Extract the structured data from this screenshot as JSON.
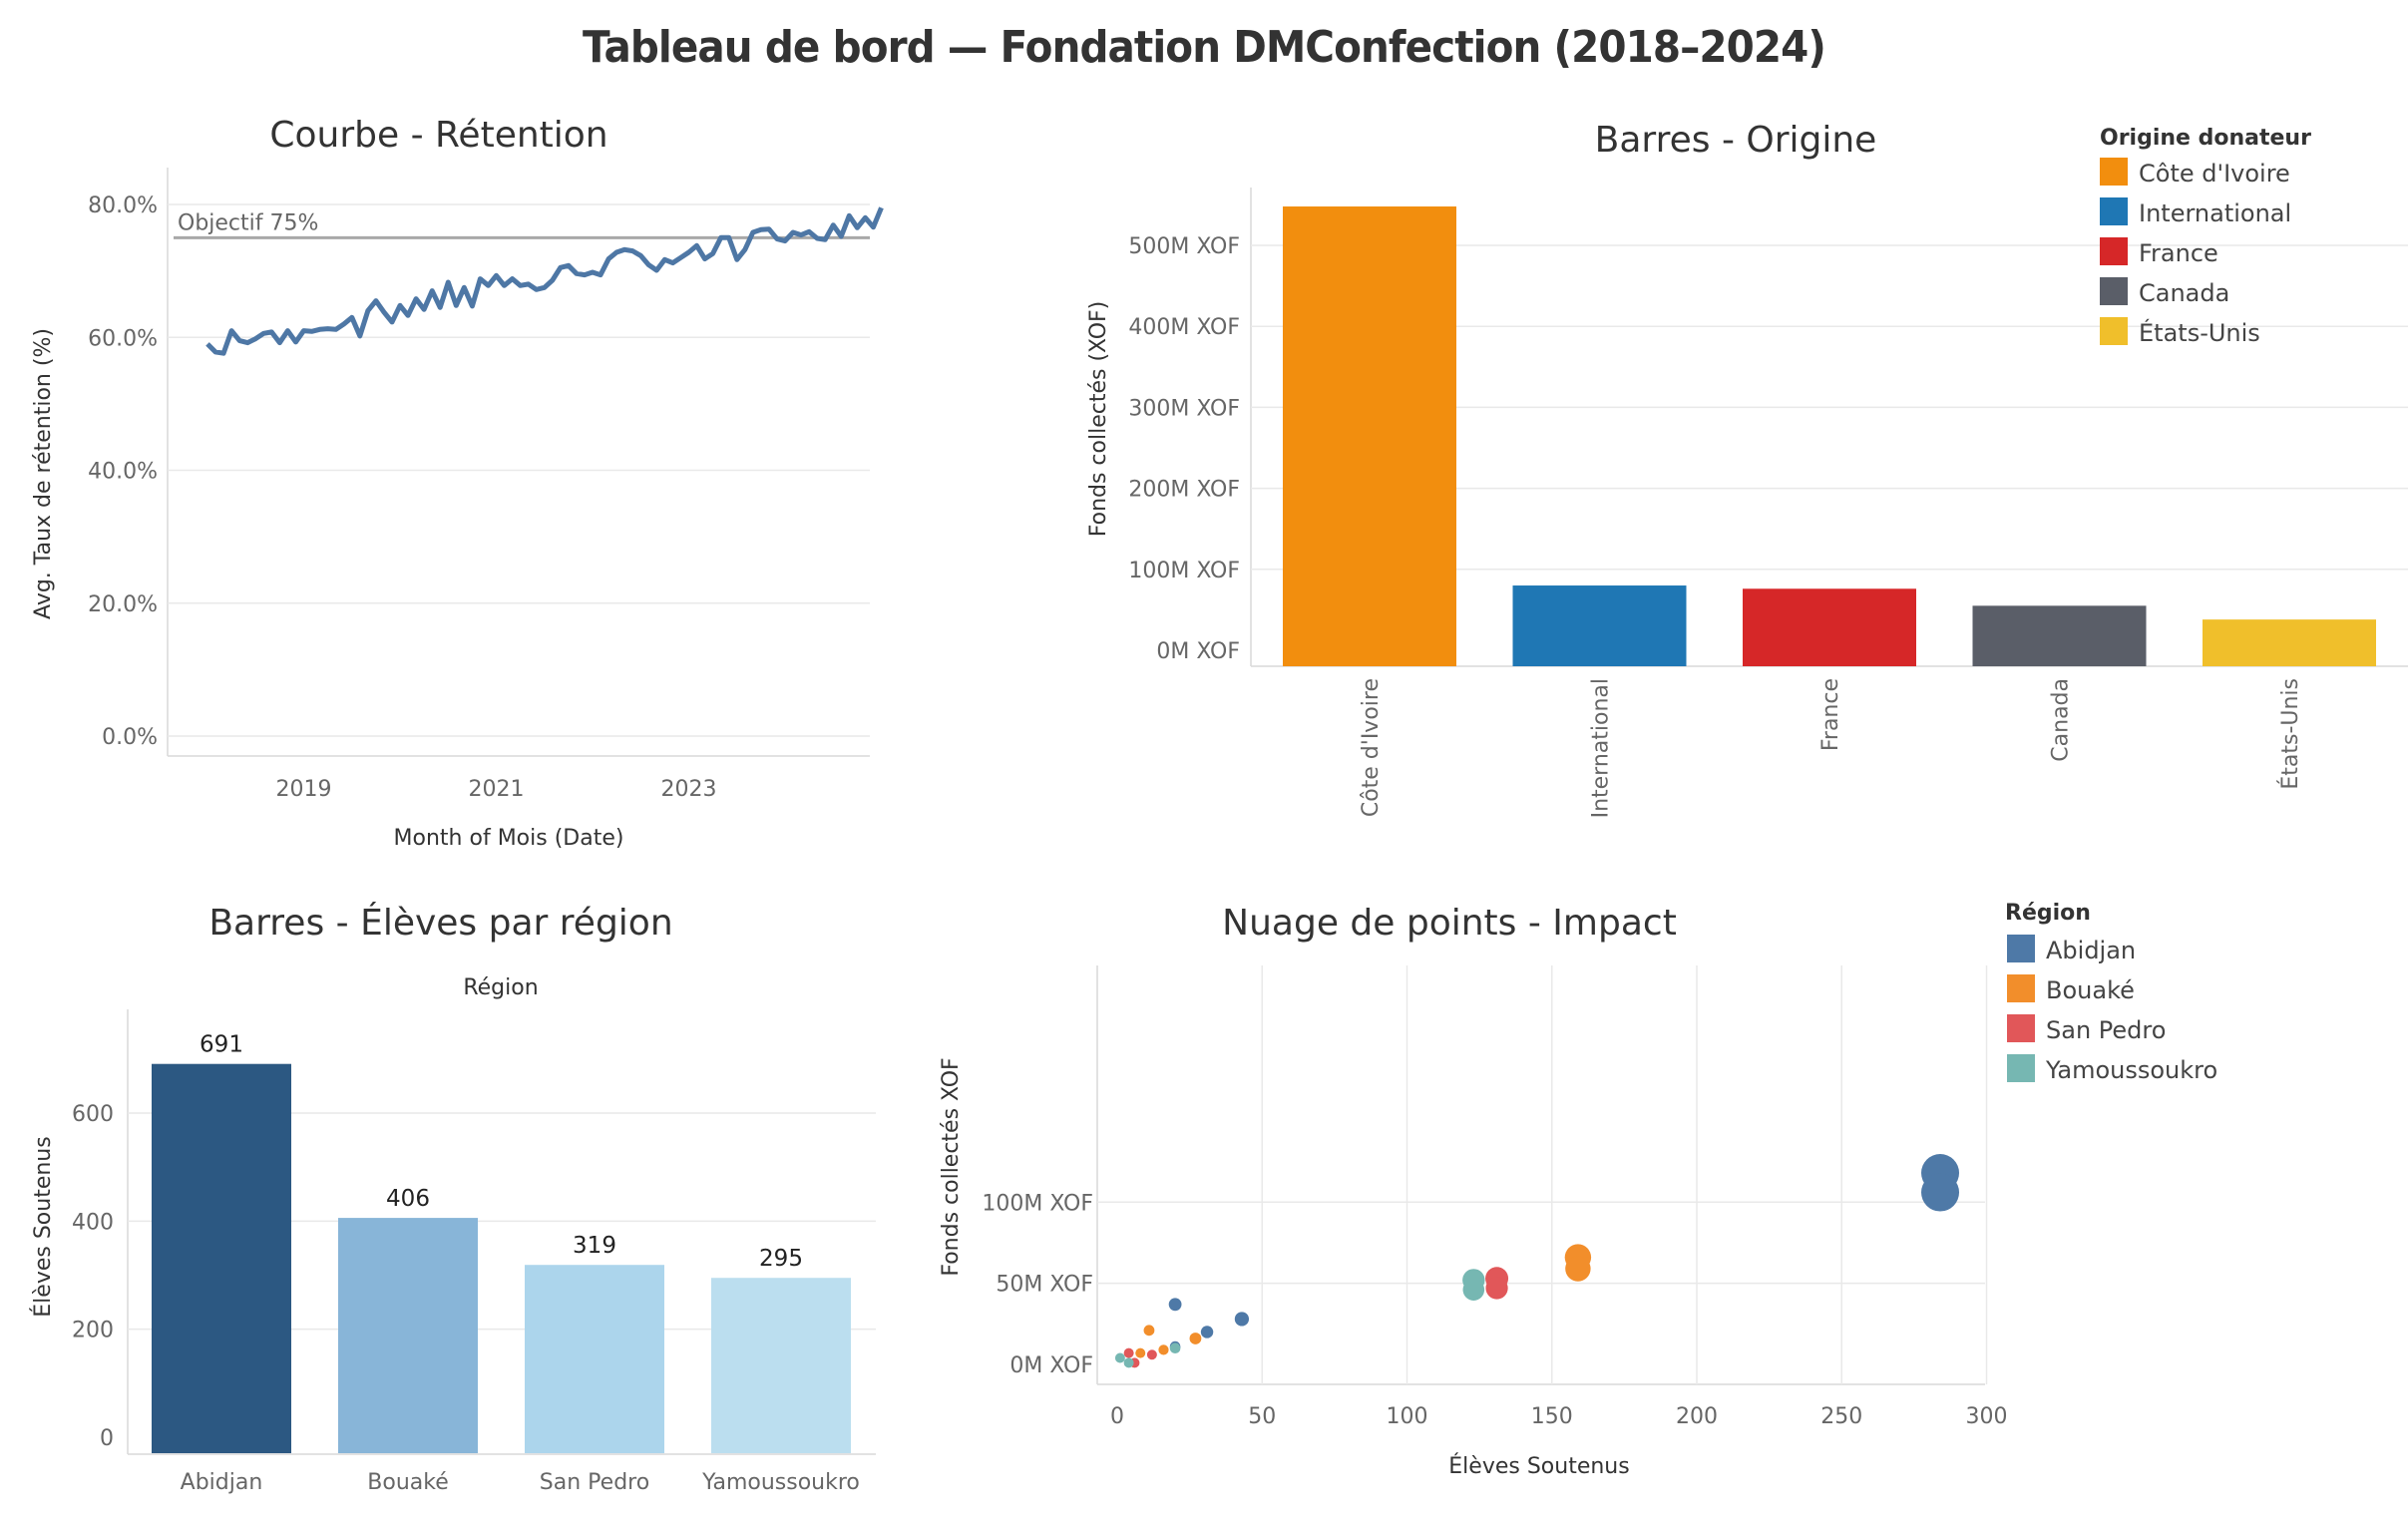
{
  "title": "Tableau de bord — Fondation DMConfection (2018–2024)",
  "chart_data": [
    {
      "type": "line",
      "title": "Courbe - Rétention",
      "xlabel": "Month of Mois (Date)",
      "ylabel": "Avg. Taux de rétention (%)",
      "x_ticks": [
        "2019",
        "2021",
        "2023"
      ],
      "y_ticks": [
        "0.0%",
        "20.0%",
        "40.0%",
        "60.0%",
        "80.0%"
      ],
      "ylim": [
        0,
        80
      ],
      "reference_line": {
        "label": "Objectif 75%",
        "value": 75
      },
      "series": [
        {
          "x_start": "2018-01",
          "values": [
            59.0,
            57.8,
            57.6,
            61.0,
            59.5,
            59.2,
            59.8,
            60.6,
            60.8,
            59.2,
            61.0,
            59.3,
            61.0,
            60.9,
            61.2,
            61.3,
            61.2,
            62.0,
            63.0,
            60.2,
            64.0,
            65.5,
            63.8,
            62.3,
            64.8,
            63.3,
            65.8,
            64.2,
            67.0,
            64.5,
            68.3,
            64.8,
            67.5,
            64.7,
            68.8,
            67.8,
            69.3,
            67.8,
            68.8,
            67.8,
            68.0,
            67.2,
            67.5,
            68.6,
            70.5,
            70.8,
            69.6,
            69.4,
            69.8,
            69.4,
            71.8,
            72.8,
            73.2,
            73.0,
            72.3,
            70.9,
            70.1,
            71.7,
            71.2,
            72.0,
            72.8,
            73.8,
            71.8,
            72.6,
            75.0,
            75.0,
            71.7,
            73.2,
            75.8,
            76.2,
            76.3,
            74.8,
            74.5,
            75.8,
            75.4,
            75.9,
            74.9,
            74.7,
            76.9,
            75.2,
            78.3,
            76.5,
            78.0,
            76.6,
            79.5
          ]
        }
      ]
    },
    {
      "type": "bar",
      "title": "Barres - Origine",
      "ylabel": "Fonds collectés (XOF)",
      "categories": [
        "Côte d'Ivoire",
        "International",
        "France",
        "Canada",
        "États-Unis"
      ],
      "values": [
        548,
        80,
        76,
        55,
        38
      ],
      "unit": "M XOF",
      "y_ticks": [
        "0M XOF",
        "100M XOF",
        "200M XOF",
        "300M XOF",
        "400M XOF",
        "500M XOF"
      ],
      "colors": [
        "#f28e0e",
        "#1f77b4",
        "#d62728",
        "#5a5e68",
        "#f0bf2b"
      ],
      "legend": {
        "title": "Origine donateur",
        "placement": "top-right",
        "entries": [
          "Côte d'Ivoire",
          "International",
          "France",
          "Canada",
          "États-Unis"
        ]
      }
    },
    {
      "type": "bar",
      "title": "Barres - Élèves par région",
      "subtitle": "Région",
      "ylabel": "Élèves Soutenus",
      "categories": [
        "Abidjan",
        "Bouaké",
        "San Pedro",
        "Yamoussoukro"
      ],
      "values": [
        691,
        406,
        319,
        295
      ],
      "data_labels": [
        "691",
        "406",
        "319",
        "295"
      ],
      "y_ticks": [
        "0",
        "200",
        "400",
        "600"
      ],
      "colors": [
        "#2c5882",
        "#88b5d8",
        "#acd5ec",
        "#bbdeef"
      ]
    },
    {
      "type": "scatter",
      "title": "Nuage de points - Impact",
      "xlabel": "Élèves Soutenus",
      "ylabel": "Fonds collectés XOF",
      "x_ticks": [
        "0",
        "50",
        "100",
        "150",
        "200",
        "250",
        "300"
      ],
      "y_ticks": [
        "0M XOF",
        "50M XOF",
        "100M XOF"
      ],
      "legend": {
        "title": "Région",
        "placement": "right",
        "entries": [
          "Abidjan",
          "Bouaké",
          "San Pedro",
          "Yamoussoukro"
        ]
      },
      "colors": {
        "Abidjan": "#4e79a7",
        "Bouaké": "#f28e2b",
        "San Pedro": "#e15759",
        "Yamoussoukro": "#76b7b2"
      },
      "series": [
        {
          "name": "Abidjan",
          "points": [
            [
              284,
              118
            ],
            [
              284,
              106
            ],
            [
              20,
              37
            ],
            [
              43,
              28
            ],
            [
              31,
              20
            ],
            [
              20,
              11
            ]
          ]
        },
        {
          "name": "Bouaké",
          "points": [
            [
              159,
              66
            ],
            [
              159,
              59
            ],
            [
              11,
              21
            ],
            [
              27,
              16
            ],
            [
              16,
              9
            ],
            [
              8,
              7
            ]
          ]
        },
        {
          "name": "San Pedro",
          "points": [
            [
              131,
              53
            ],
            [
              131,
              47
            ],
            [
              4,
              7
            ],
            [
              12,
              6
            ],
            [
              6,
              1
            ]
          ]
        },
        {
          "name": "Yamoussoukro",
          "points": [
            [
              123,
              52
            ],
            [
              123,
              46
            ],
            [
              20,
              10
            ],
            [
              1,
              4
            ],
            [
              4,
              1
            ]
          ]
        }
      ]
    }
  ]
}
